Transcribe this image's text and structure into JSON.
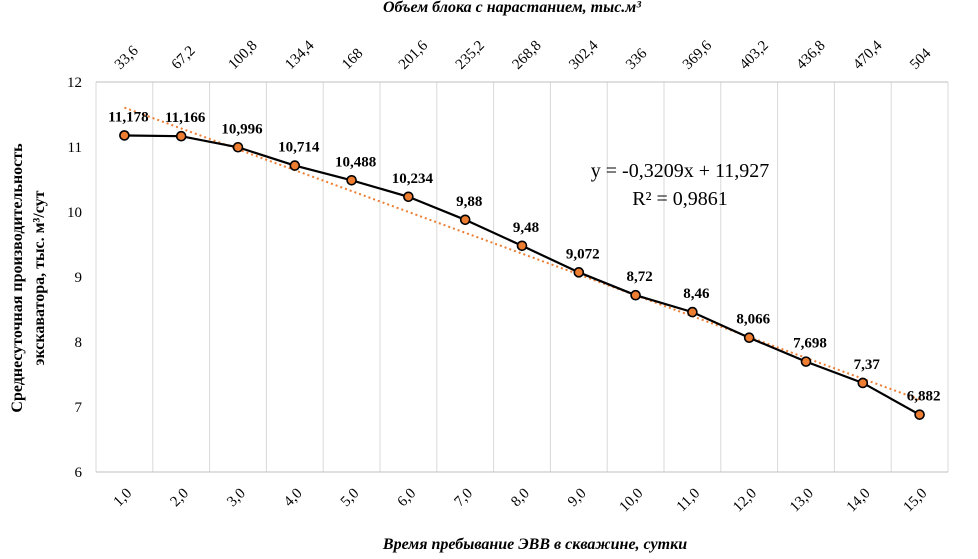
{
  "chart_data": {
    "type": "line",
    "x": [
      "1,0",
      "2,0",
      "3,0",
      "4,0",
      "5,0",
      "6,0",
      "7,0",
      "8,0",
      "9,0",
      "10,0",
      "11,0",
      "12,0",
      "13,0",
      "14,0",
      "15,0"
    ],
    "x_values": [
      1,
      2,
      3,
      4,
      5,
      6,
      7,
      8,
      9,
      10,
      11,
      12,
      13,
      14,
      15
    ],
    "x2": [
      "33,6",
      "67,2",
      "100,8",
      "134,4",
      "168",
      "201,6",
      "235,2",
      "268,8",
      "302,4",
      "336",
      "369,6",
      "403,2",
      "436,8",
      "470,4",
      "504"
    ],
    "values": [
      11.178,
      11.166,
      10.996,
      10.714,
      10.488,
      10.234,
      9.88,
      9.48,
      9.072,
      8.72,
      8.46,
      8.066,
      7.698,
      7.37,
      6.882
    ],
    "data_labels": [
      "11,178",
      "11,166",
      "10,996",
      "10,714",
      "10,488",
      "10,234",
      "9,88",
      "9,48",
      "9,072",
      "8,72",
      "8,46",
      "8,066",
      "7,698",
      "7,37",
      "6,882"
    ],
    "trendline": {
      "type": "linear",
      "slope": -0.3209,
      "intercept": 11.927
    },
    "equation": "y = -0,3209x + 11,927",
    "r2": "R² = 0,9861",
    "xlabel": "Время пребывание ЭВВ в скважине, сутки",
    "x2label": "Объем блока с нарастанием, тыс.м³",
    "ylabel_line1": "Среднесуточная   производительность",
    "ylabel_line2": "экскаватора,  тыс. м³/сут",
    "ylim": [
      6,
      12
    ],
    "yticks": [
      "6",
      "7",
      "8",
      "9",
      "10",
      "11",
      "12"
    ],
    "grid": "vertical",
    "colors": {
      "line": "#000000",
      "marker_fill": "#ed7d31",
      "trend": "#ed7d31",
      "grid": "#d9d9d9"
    }
  }
}
